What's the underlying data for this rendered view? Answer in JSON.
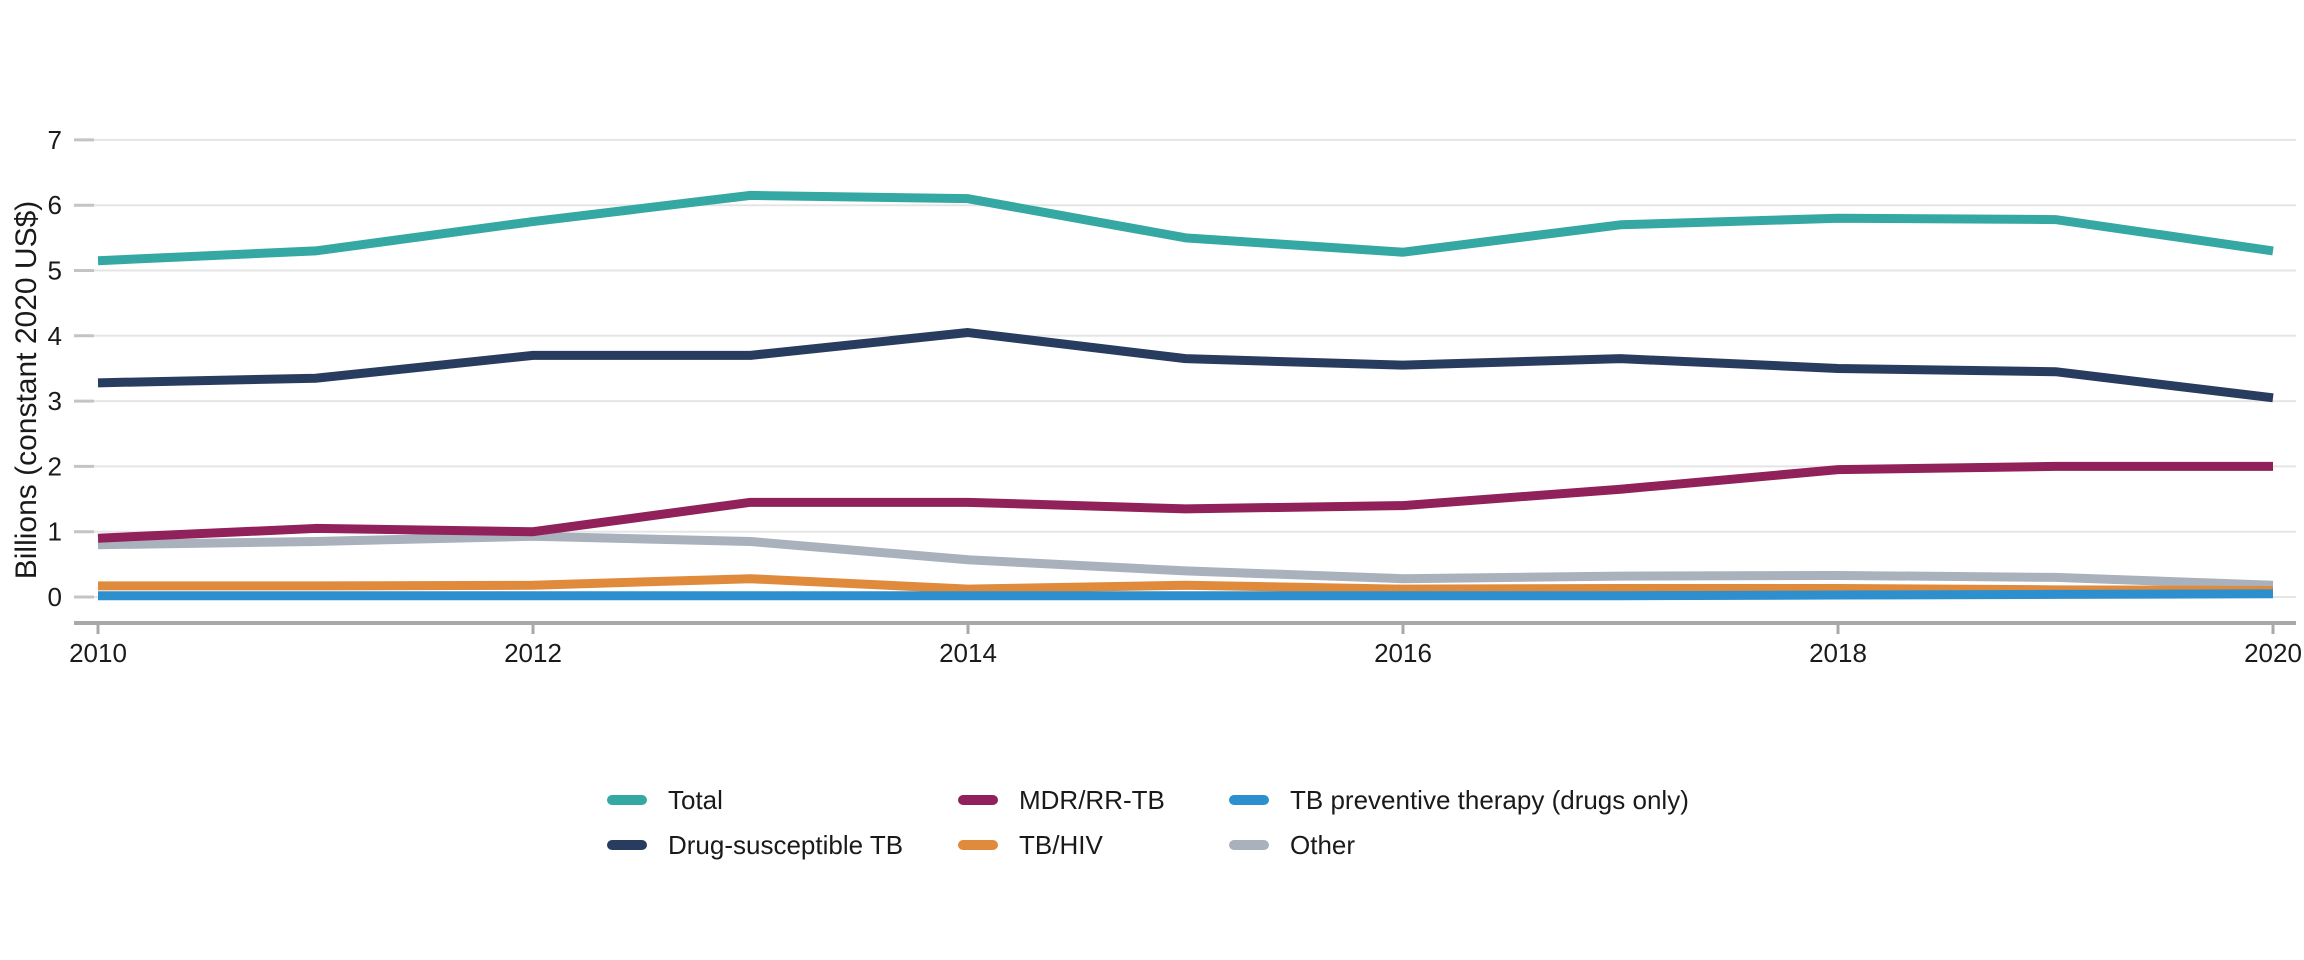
{
  "figure": {
    "background_color": "#ffffff",
    "text_color": "#1a1a1a",
    "gridline_color": "#e5e5e5",
    "axis_color": "#a9a9a9"
  },
  "chart_data": {
    "type": "line",
    "title": "",
    "xlabel": "",
    "ylabel": "Billions (constant 2020 US$)",
    "x": [
      2010,
      2011,
      2012,
      2013,
      2014,
      2015,
      2016,
      2017,
      2018,
      2019,
      2020
    ],
    "x_tick_labels": [
      "2010",
      "2012",
      "2014",
      "2016",
      "2018",
      "2020"
    ],
    "x_ticks": [
      2010,
      2012,
      2014,
      2016,
      2018,
      2020
    ],
    "ylim": [
      0,
      7
    ],
    "y_ticks": [
      0,
      1,
      2,
      3,
      4,
      5,
      6,
      7
    ],
    "grid": "horizontal",
    "legend_position": "bottom",
    "series": [
      {
        "name": "Total",
        "color": "#35a8a3",
        "values": [
          5.15,
          5.3,
          5.75,
          6.15,
          6.1,
          5.5,
          5.28,
          5.7,
          5.8,
          5.78,
          5.3
        ]
      },
      {
        "name": "Drug-susceptible TB",
        "color": "#273c5e",
        "values": [
          3.28,
          3.35,
          3.7,
          3.7,
          4.05,
          3.65,
          3.55,
          3.65,
          3.5,
          3.45,
          3.05
        ]
      },
      {
        "name": "MDR/RR-TB",
        "color": "#90215a",
        "values": [
          0.9,
          1.05,
          1.0,
          1.45,
          1.45,
          1.35,
          1.4,
          1.65,
          1.95,
          2.0,
          2.0
        ]
      },
      {
        "name": "TB/HIV",
        "color": "#e08a3c",
        "values": [
          0.17,
          0.17,
          0.18,
          0.28,
          0.12,
          0.18,
          0.12,
          0.13,
          0.13,
          0.11,
          0.1
        ]
      },
      {
        "name": "TB preventive therapy (drugs only)",
        "color": "#2e8fce",
        "values": [
          0.02,
          0.02,
          0.02,
          0.02,
          0.02,
          0.02,
          0.02,
          0.02,
          0.03,
          0.04,
          0.05
        ]
      },
      {
        "name": "Other",
        "color": "#a8b1bc",
        "values": [
          0.8,
          0.85,
          0.93,
          0.85,
          0.57,
          0.4,
          0.28,
          0.32,
          0.33,
          0.3,
          0.18
        ]
      }
    ],
    "legend_columns": [
      [
        "Total",
        "Drug-susceptible TB"
      ],
      [
        "MDR/RR-TB",
        "TB/HIV"
      ],
      [
        "TB preventive therapy (drugs only)",
        "Other"
      ]
    ]
  }
}
